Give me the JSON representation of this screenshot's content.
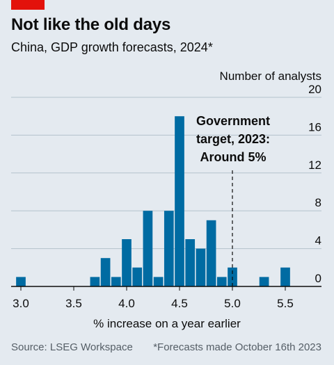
{
  "header": {
    "title": "Not like the old days",
    "subtitle": "China, GDP growth forecasts, 2024*"
  },
  "footer": {
    "source": "Source: LSEG Workspace",
    "note": "*Forecasts made October 16th 2023"
  },
  "colors": {
    "bar": "#006ba2",
    "accent": "#e3120b",
    "background": "#e4eaf0",
    "grid": "#b4c2cc"
  },
  "chart_data": {
    "type": "bar",
    "title": "Not like the old days",
    "subtitle": "China, GDP growth forecasts, 2024*",
    "xlabel": "% increase on a year earlier",
    "ylabel": "Number of analysts",
    "x": [
      3.0,
      3.7,
      3.8,
      3.9,
      4.0,
      4.1,
      4.2,
      4.3,
      4.4,
      4.5,
      4.6,
      4.7,
      4.8,
      4.9,
      5.0,
      5.3,
      5.5
    ],
    "values": [
      1,
      1,
      3,
      1,
      5,
      2,
      8,
      1,
      8,
      18,
      5,
      4,
      7,
      1,
      2,
      1,
      2
    ],
    "xlim": [
      2.95,
      5.6
    ],
    "ylim": [
      0,
      20
    ],
    "xticks": [
      "3.0",
      "3.5",
      "4.0",
      "4.5",
      "5.0",
      "5.5"
    ],
    "xtick_values": [
      3.0,
      3.5,
      4.0,
      4.5,
      5.0,
      5.5
    ],
    "yticks": [
      0,
      4,
      8,
      12,
      16,
      20
    ],
    "grid": true,
    "annotation": {
      "lines": [
        "Government",
        "target, 2023:",
        "Around 5%"
      ],
      "x": 5.0
    }
  }
}
